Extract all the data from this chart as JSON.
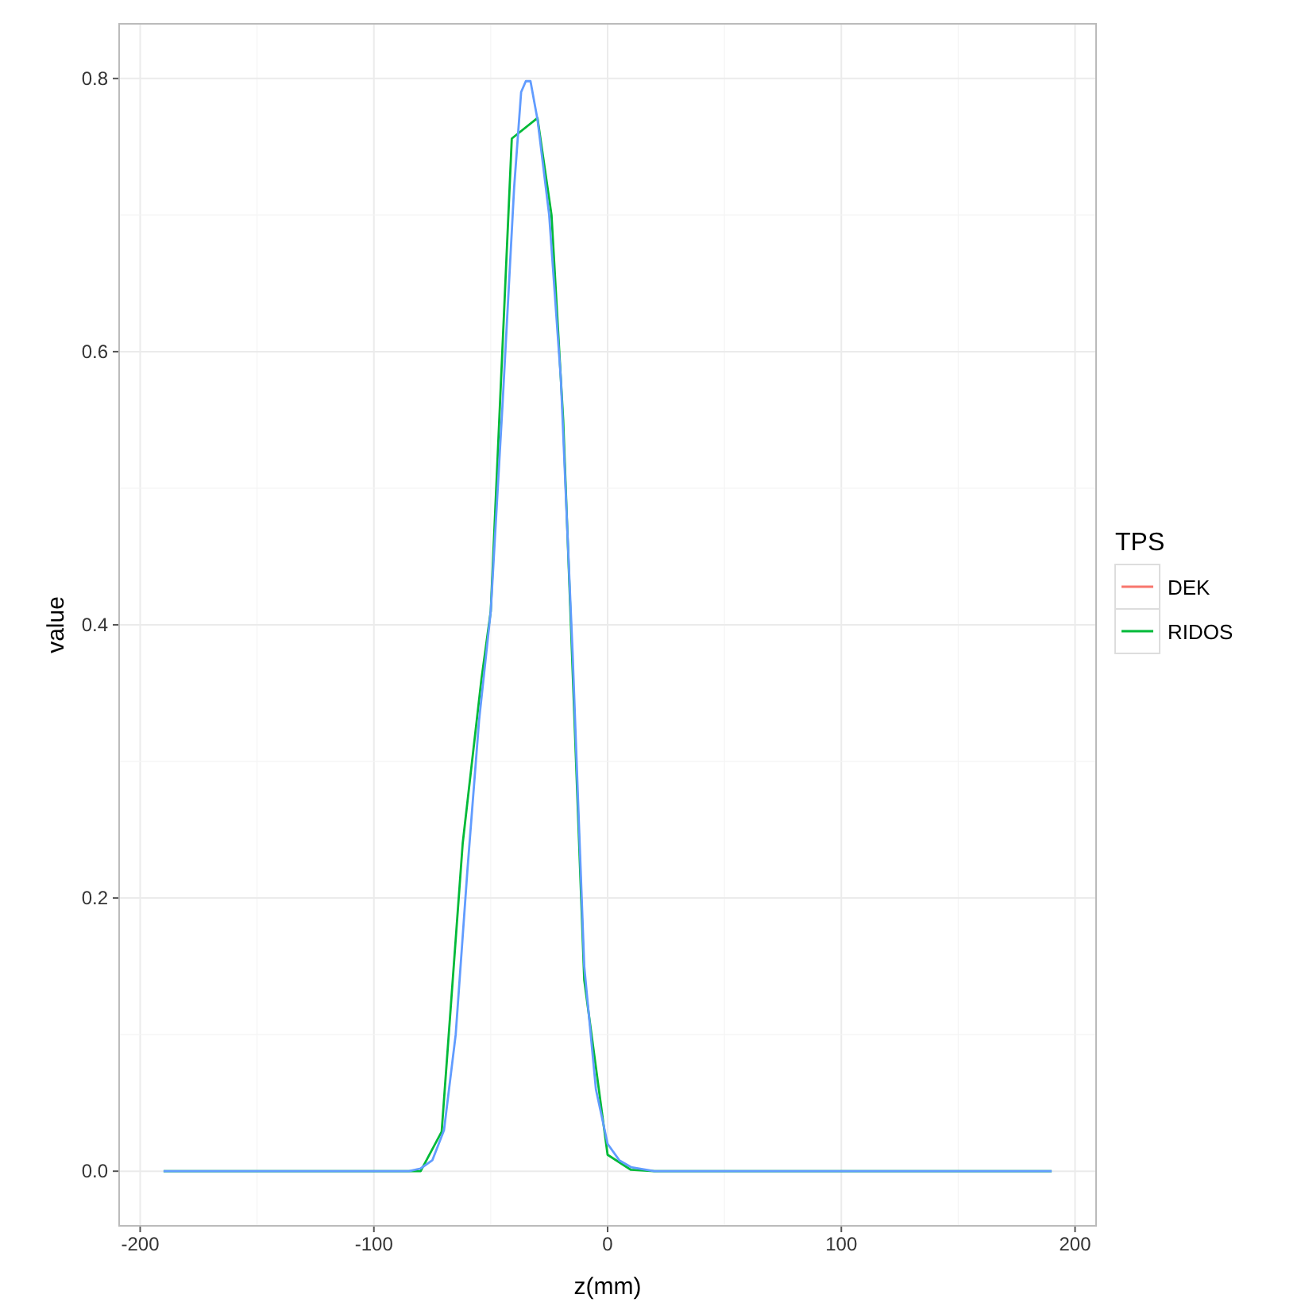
{
  "chart_data": {
    "type": "line",
    "xlabel": "z(mm)",
    "ylabel": "value",
    "legend_title": "TPS",
    "xlim": [
      -209,
      209
    ],
    "ylim": [
      -0.04,
      0.84
    ],
    "xticks": [
      -200,
      -100,
      0,
      100,
      200
    ],
    "yticks": [
      {
        "value": 0,
        "label": "0.0"
      },
      0.2,
      0.4,
      0.6,
      0.8
    ],
    "grid": true,
    "legend": "right",
    "line_style": "solid",
    "series": [
      {
        "name": "DEK",
        "color": "#f8766d"
      },
      {
        "name": "RIDOS",
        "color": "#00ba38",
        "x": [
          -190,
          -80,
          -71,
          -62,
          -54,
          -50,
          -41,
          -30,
          -24,
          -19,
          -10,
          0,
          10,
          20,
          190
        ],
        "values": [
          0,
          0,
          0.029,
          0.24,
          0.36,
          0.41,
          0.756,
          0.771,
          0.7,
          0.55,
          0.14,
          0.012,
          0.001,
          0,
          0
        ]
      },
      {
        "color": "#619cff",
        "x": [
          -190,
          -85,
          -80,
          -75,
          -70,
          -65,
          -60,
          -55,
          -50,
          -45,
          -40,
          -37,
          -35,
          -33,
          -30,
          -25,
          -20,
          -15,
          -10,
          -5,
          0,
          5,
          10,
          20,
          190
        ],
        "values": [
          0,
          0,
          0.002,
          0.008,
          0.03,
          0.1,
          0.22,
          0.33,
          0.41,
          0.56,
          0.72,
          0.79,
          0.798,
          0.798,
          0.77,
          0.7,
          0.58,
          0.38,
          0.15,
          0.06,
          0.02,
          0.008,
          0.003,
          0,
          0
        ]
      }
    ]
  }
}
